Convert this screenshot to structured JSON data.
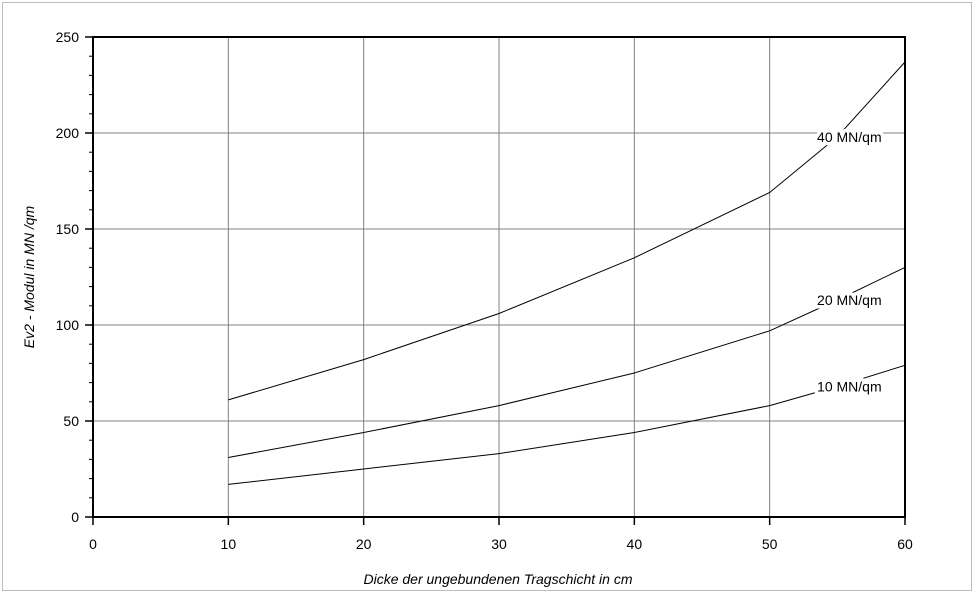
{
  "chart_data": {
    "type": "line",
    "title": "",
    "xlabel": "Dicke der ungebundenen Tragschicht in cm",
    "ylabel": "Ev2 - Modul in MN /qm",
    "xlim": [
      0,
      60
    ],
    "ylim": [
      0,
      250
    ],
    "xticks": [
      0,
      10,
      20,
      30,
      40,
      50,
      60
    ],
    "yticks": [
      0,
      50,
      100,
      150,
      200,
      250
    ],
    "grid": true,
    "legend": "none",
    "x": [
      10,
      20,
      30,
      40,
      50,
      55,
      60
    ],
    "series": [
      {
        "name": "40 MN/qm",
        "values": [
          61,
          82,
          106,
          135,
          169,
          198,
          237
        ],
        "color": "#000000"
      },
      {
        "name": "20 MN/qm",
        "values": [
          31,
          44,
          58,
          75,
          97,
          113,
          130
        ],
        "color": "#000000"
      },
      {
        "name": "10 MN/qm",
        "values": [
          17,
          25,
          33,
          44,
          58,
          68,
          79
        ],
        "color": "#000000"
      }
    ]
  }
}
